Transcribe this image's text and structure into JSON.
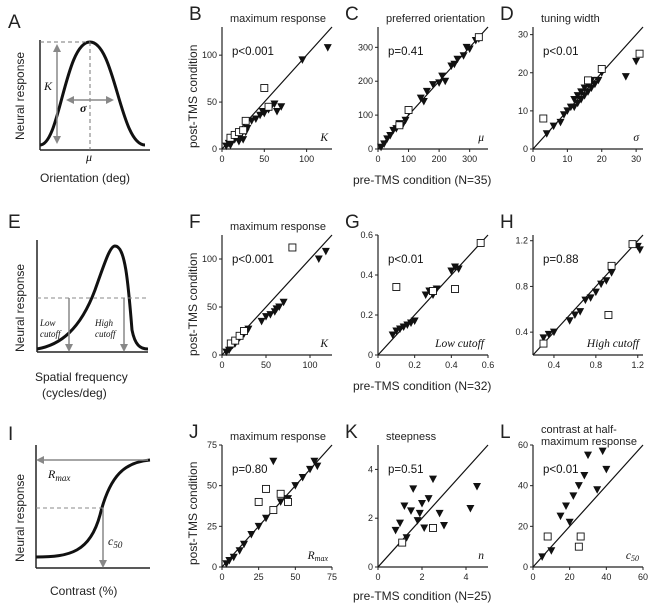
{
  "figure": {
    "row1_xlabel": "pre-TMS condition (N=35)",
    "row2_xlabel": "pre-TMS condition (N=32)",
    "row3_xlabel": "pre-TMS condition (N=25)",
    "ylabel": "post-TMS condition"
  },
  "schematics": [
    {
      "letter": "A",
      "ylabel": "Neural response",
      "xlabel": "Orientation (deg)",
      "labels": {
        "K": "K",
        "sigma": "σ",
        "mu": "μ"
      }
    },
    {
      "letter": "E",
      "ylabel": "Neural response",
      "xlabel": "Spatial frequency",
      "xlabel2": "(cycles/deg)",
      "labels": {
        "low1": "Low",
        "low2": "cutoff",
        "high1": "High",
        "high2": "cutoff"
      }
    },
    {
      "letter": "I",
      "ylabel": "Neural response",
      "xlabel": "Contrast (%)",
      "labels": {
        "rmax": "R",
        "rmax_sub": "max",
        "c50": "c",
        "c50_sub": "50"
      }
    }
  ],
  "chart_data": [
    {
      "panel": "B",
      "type": "scatter",
      "title": "maximum response",
      "p": "p<0.001",
      "corner": "K",
      "xlim": [
        0,
        130
      ],
      "ylim": [
        0,
        130
      ],
      "xticks": [
        "0",
        "50",
        "100"
      ],
      "xtickvals": [
        0,
        50,
        100
      ],
      "yticks": [
        "0",
        "50",
        "100"
      ],
      "ytickvals": [
        0,
        50,
        100
      ],
      "triangles": [
        [
          5,
          3
        ],
        [
          8,
          6
        ],
        [
          10,
          4
        ],
        [
          12,
          8
        ],
        [
          15,
          10
        ],
        [
          18,
          12
        ],
        [
          20,
          8
        ],
        [
          22,
          14
        ],
        [
          25,
          10
        ],
        [
          28,
          18
        ],
        [
          30,
          22
        ],
        [
          35,
          30
        ],
        [
          40,
          32
        ],
        [
          45,
          36
        ],
        [
          48,
          40
        ],
        [
          50,
          38
        ],
        [
          55,
          42
        ],
        [
          58,
          45
        ],
        [
          62,
          48
        ],
        [
          65,
          40
        ],
        [
          70,
          45
        ],
        [
          95,
          95
        ],
        [
          125,
          108
        ]
      ],
      "squares": [
        [
          10,
          12
        ],
        [
          15,
          15
        ],
        [
          20,
          18
        ],
        [
          25,
          20
        ],
        [
          28,
          30
        ],
        [
          50,
          65
        ],
        [
          55,
          45
        ]
      ]
    },
    {
      "panel": "C",
      "type": "scatter",
      "title": "preferred orientation",
      "p": "p=0.41",
      "corner": "μ",
      "xlim": [
        0,
        360
      ],
      "ylim": [
        0,
        360
      ],
      "xticks": [
        "0",
        "100",
        "200",
        "300"
      ],
      "xtickvals": [
        0,
        100,
        200,
        300
      ],
      "yticks": [
        "0",
        "100",
        "200",
        "300"
      ],
      "ytickvals": [
        0,
        100,
        200,
        300
      ],
      "triangles": [
        [
          10,
          5
        ],
        [
          20,
          15
        ],
        [
          30,
          30
        ],
        [
          40,
          40
        ],
        [
          50,
          55
        ],
        [
          60,
          60
        ],
        [
          70,
          75
        ],
        [
          80,
          70
        ],
        [
          90,
          85
        ],
        [
          100,
          110
        ],
        [
          140,
          150
        ],
        [
          150,
          140
        ],
        [
          160,
          170
        ],
        [
          180,
          190
        ],
        [
          200,
          195
        ],
        [
          210,
          215
        ],
        [
          220,
          200
        ],
        [
          240,
          245
        ],
        [
          250,
          250
        ],
        [
          260,
          265
        ],
        [
          280,
          275
        ],
        [
          290,
          300
        ],
        [
          300,
          295
        ],
        [
          320,
          320
        ],
        [
          330,
          325
        ]
      ],
      "squares": [
        [
          70,
          70
        ],
        [
          100,
          115
        ],
        [
          330,
          330
        ]
      ]
    },
    {
      "panel": "D",
      "type": "scatter",
      "title": "tuning width",
      "p": "p<0.01",
      "corner": "σ",
      "xlim": [
        0,
        32
      ],
      "ylim": [
        0,
        32
      ],
      "xticks": [
        "0",
        "10",
        "20",
        "30"
      ],
      "xtickvals": [
        0,
        10,
        20,
        30
      ],
      "yticks": [
        "0",
        "10",
        "20",
        "30"
      ],
      "ytickvals": [
        0,
        10,
        20,
        30
      ],
      "triangles": [
        [
          4,
          4
        ],
        [
          6,
          6
        ],
        [
          8,
          7
        ],
        [
          9,
          9
        ],
        [
          10,
          10
        ],
        [
          11,
          11
        ],
        [
          12,
          11
        ],
        [
          12,
          13
        ],
        [
          13,
          12
        ],
        [
          13,
          14
        ],
        [
          14,
          13
        ],
        [
          14,
          15
        ],
        [
          15,
          14
        ],
        [
          15,
          16
        ],
        [
          16,
          15
        ],
        [
          16,
          17
        ],
        [
          17,
          16
        ],
        [
          17,
          18
        ],
        [
          18,
          17
        ],
        [
          19,
          18
        ],
        [
          20,
          20
        ],
        [
          27,
          19
        ],
        [
          30,
          23
        ]
      ],
      "squares": [
        [
          3,
          8
        ],
        [
          16,
          18
        ],
        [
          20,
          21
        ],
        [
          31,
          25
        ]
      ]
    },
    {
      "panel": "F",
      "type": "scatter",
      "title": "maximum response",
      "p": "p<0.001",
      "corner": "K",
      "xlim": [
        0,
        125
      ],
      "ylim": [
        0,
        125
      ],
      "xticks": [
        "0",
        "50",
        "100"
      ],
      "xtickvals": [
        0,
        50,
        100
      ],
      "yticks": [
        "0",
        "50",
        "100"
      ],
      "ytickvals": [
        0,
        50,
        100
      ],
      "triangles": [
        [
          5,
          3
        ],
        [
          8,
          5
        ],
        [
          10,
          8
        ],
        [
          12,
          10
        ],
        [
          15,
          12
        ],
        [
          20,
          18
        ],
        [
          25,
          22
        ],
        [
          30,
          27
        ],
        [
          45,
          35
        ],
        [
          50,
          40
        ],
        [
          55,
          42
        ],
        [
          60,
          45
        ],
        [
          62,
          48
        ],
        [
          65,
          50
        ],
        [
          70,
          55
        ],
        [
          110,
          100
        ],
        [
          118,
          108
        ]
      ],
      "squares": [
        [
          10,
          12
        ],
        [
          15,
          15
        ],
        [
          20,
          20
        ],
        [
          25,
          25
        ],
        [
          80,
          112
        ]
      ]
    },
    {
      "panel": "G",
      "type": "scatter",
      "title": "",
      "p": "p<0.01",
      "corner": "Low cutoff",
      "xlim": [
        0,
        0.6
      ],
      "ylim": [
        0,
        0.6
      ],
      "xticks": [
        "0",
        "0.2",
        "0.4",
        "0.6"
      ],
      "xtickvals": [
        0,
        0.2,
        0.4,
        0.6
      ],
      "yticks": [
        "0",
        "0.2",
        "0.4",
        "0.6"
      ],
      "ytickvals": [
        0,
        0.2,
        0.4,
        0.6
      ],
      "triangles": [
        [
          0.08,
          0.1
        ],
        [
          0.1,
          0.12
        ],
        [
          0.12,
          0.13
        ],
        [
          0.14,
          0.14
        ],
        [
          0.16,
          0.15
        ],
        [
          0.18,
          0.16
        ],
        [
          0.2,
          0.17
        ],
        [
          0.26,
          0.3
        ],
        [
          0.28,
          0.32
        ],
        [
          0.3,
          0.3
        ],
        [
          0.32,
          0.33
        ],
        [
          0.4,
          0.42
        ],
        [
          0.42,
          0.44
        ],
        [
          0.44,
          0.43
        ]
      ],
      "squares": [
        [
          0.1,
          0.34
        ],
        [
          0.3,
          0.32
        ],
        [
          0.42,
          0.33
        ],
        [
          0.56,
          0.56
        ]
      ]
    },
    {
      "panel": "H",
      "type": "scatter",
      "title": "",
      "p": "p=0.88",
      "corner": "High cutoff",
      "xlim": [
        0.2,
        1.25
      ],
      "ylim": [
        0.2,
        1.25
      ],
      "xticks": [
        "0.4",
        "0.8",
        "1.2"
      ],
      "xtickvals": [
        0.4,
        0.8,
        1.2
      ],
      "yticks": [
        "0.4",
        "0.8",
        "1.2"
      ],
      "ytickvals": [
        0.4,
        0.8,
        1.2
      ],
      "triangles": [
        [
          0.3,
          0.35
        ],
        [
          0.35,
          0.38
        ],
        [
          0.4,
          0.4
        ],
        [
          0.55,
          0.5
        ],
        [
          0.6,
          0.55
        ],
        [
          0.65,
          0.58
        ],
        [
          0.7,
          0.68
        ],
        [
          0.75,
          0.7
        ],
        [
          0.8,
          0.75
        ],
        [
          0.85,
          0.82
        ],
        [
          0.9,
          0.85
        ],
        [
          0.95,
          0.92
        ],
        [
          1.2,
          1.15
        ],
        [
          1.22,
          1.12
        ]
      ],
      "squares": [
        [
          0.3,
          0.3
        ],
        [
          0.92,
          0.55
        ],
        [
          0.95,
          0.98
        ],
        [
          1.15,
          1.17
        ]
      ]
    },
    {
      "panel": "J",
      "type": "scatter",
      "title": "maximum response",
      "p": "p=0.80",
      "corner": "Rmax",
      "xlim": [
        0,
        75
      ],
      "ylim": [
        0,
        75
      ],
      "xticks": [
        "0",
        "25",
        "50",
        "75"
      ],
      "xtickvals": [
        0,
        25,
        50,
        75
      ],
      "yticks": [
        "0",
        "25",
        "50",
        "75"
      ],
      "ytickvals": [
        0,
        25,
        50,
        75
      ],
      "triangles": [
        [
          3,
          2
        ],
        [
          5,
          4
        ],
        [
          8,
          6
        ],
        [
          12,
          10
        ],
        [
          15,
          14
        ],
        [
          20,
          20
        ],
        [
          25,
          25
        ],
        [
          30,
          30
        ],
        [
          35,
          65
        ],
        [
          40,
          40
        ],
        [
          45,
          42
        ],
        [
          50,
          50
        ],
        [
          55,
          55
        ],
        [
          60,
          60
        ],
        [
          63,
          65
        ],
        [
          65,
          62
        ]
      ],
      "squares": [
        [
          25,
          40
        ],
        [
          30,
          48
        ],
        [
          35,
          35
        ],
        [
          40,
          45
        ],
        [
          45,
          40
        ]
      ]
    },
    {
      "panel": "K",
      "type": "scatter",
      "title": "steepness",
      "p": "p=0.51",
      "corner": "n",
      "xlim": [
        0,
        5
      ],
      "ylim": [
        0,
        5
      ],
      "xticks": [
        "0",
        "2",
        "4"
      ],
      "xtickvals": [
        0,
        2,
        4
      ],
      "yticks": [
        "0",
        "2",
        "4"
      ],
      "ytickvals": [
        0,
        2,
        4
      ],
      "triangles": [
        [
          0.8,
          1.5
        ],
        [
          1,
          1.8
        ],
        [
          1.2,
          2.5
        ],
        [
          1.3,
          1.2
        ],
        [
          1.5,
          2.3
        ],
        [
          1.6,
          3.2
        ],
        [
          1.8,
          1.9
        ],
        [
          1.9,
          2.2
        ],
        [
          2,
          2.6
        ],
        [
          2.1,
          1.6
        ],
        [
          2.3,
          2.8
        ],
        [
          2.5,
          3.6
        ],
        [
          2.8,
          2.2
        ],
        [
          3,
          1.7
        ],
        [
          4.2,
          2.4
        ],
        [
          4.5,
          3.3
        ]
      ],
      "squares": [
        [
          1.1,
          1.0
        ],
        [
          2.5,
          1.6
        ]
      ]
    },
    {
      "panel": "L",
      "type": "scatter",
      "title": "contrast at half-",
      "title2": "maximum response",
      "p": "p<0.01",
      "corner": "c50",
      "xlim": [
        0,
        60
      ],
      "ylim": [
        0,
        60
      ],
      "xticks": [
        "0",
        "20",
        "40",
        "60"
      ],
      "xtickvals": [
        0,
        20,
        40,
        60
      ],
      "yticks": [
        "0",
        "20",
        "40",
        "60"
      ],
      "ytickvals": [
        0,
        20,
        40,
        60
      ],
      "triangles": [
        [
          5,
          5
        ],
        [
          10,
          8
        ],
        [
          15,
          25
        ],
        [
          18,
          30
        ],
        [
          20,
          22
        ],
        [
          22,
          35
        ],
        [
          25,
          40
        ],
        [
          28,
          45
        ],
        [
          30,
          55
        ],
        [
          35,
          38
        ],
        [
          38,
          57
        ],
        [
          40,
          48
        ]
      ],
      "squares": [
        [
          8,
          15
        ],
        [
          25,
          10
        ],
        [
          26,
          15
        ]
      ]
    }
  ]
}
